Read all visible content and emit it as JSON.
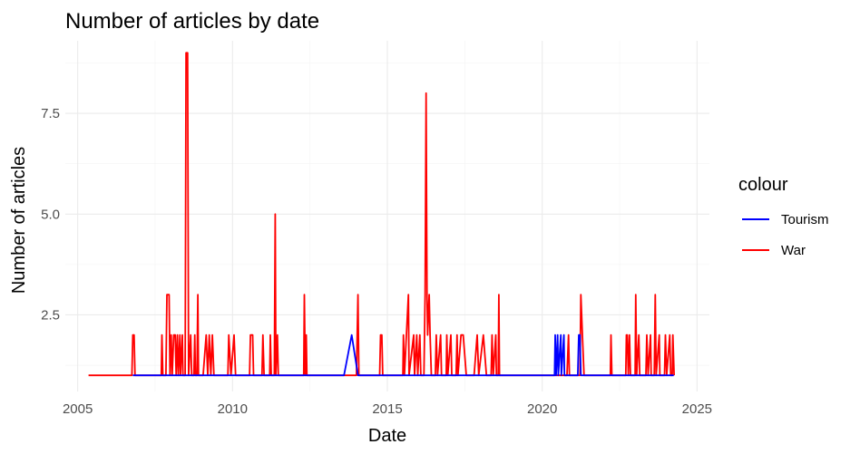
{
  "chart_data": {
    "type": "line",
    "title": "Number of articles by date",
    "xlabel": "Date",
    "ylabel": "Number of articles",
    "x_type": "year",
    "xlim": [
      2004.6,
      2025.4
    ],
    "ylim": [
      0.6,
      9.3
    ],
    "x_ticks": [
      2005,
      2010,
      2015,
      2020,
      2025
    ],
    "x_tick_labels": [
      "2005",
      "2010",
      "2015",
      "2020",
      "2025"
    ],
    "y_ticks": [
      2.5,
      5.0,
      7.5
    ],
    "y_tick_labels": [
      "2.5",
      "5.0",
      "7.5"
    ],
    "grid": true,
    "legend": {
      "title": "colour",
      "position": "right"
    },
    "colors": {
      "Tourism": "#0000ff",
      "War": "#ff0000"
    },
    "series": [
      {
        "name": "War",
        "color": "#ff0000",
        "points": [
          [
            2005.35,
            1
          ],
          [
            2006.75,
            1
          ],
          [
            2006.78,
            2
          ],
          [
            2006.82,
            2
          ],
          [
            2006.85,
            1
          ],
          [
            2007.7,
            1
          ],
          [
            2007.72,
            2
          ],
          [
            2007.75,
            1
          ],
          [
            2007.85,
            1
          ],
          [
            2007.88,
            3
          ],
          [
            2007.95,
            3
          ],
          [
            2007.98,
            1
          ],
          [
            2008.02,
            2
          ],
          [
            2008.05,
            1
          ],
          [
            2008.1,
            2
          ],
          [
            2008.15,
            2
          ],
          [
            2008.18,
            1
          ],
          [
            2008.22,
            2
          ],
          [
            2008.25,
            1
          ],
          [
            2008.3,
            2
          ],
          [
            2008.32,
            1
          ],
          [
            2008.38,
            2
          ],
          [
            2008.4,
            1
          ],
          [
            2008.47,
            1
          ],
          [
            2008.5,
            9
          ],
          [
            2008.55,
            9
          ],
          [
            2008.58,
            1
          ],
          [
            2008.65,
            2
          ],
          [
            2008.68,
            1
          ],
          [
            2008.75,
            1
          ],
          [
            2008.78,
            2
          ],
          [
            2008.8,
            1
          ],
          [
            2008.85,
            1
          ],
          [
            2008.88,
            3
          ],
          [
            2008.9,
            1
          ],
          [
            2009.05,
            1
          ],
          [
            2009.15,
            2
          ],
          [
            2009.2,
            1
          ],
          [
            2009.25,
            2
          ],
          [
            2009.3,
            1
          ],
          [
            2009.35,
            2
          ],
          [
            2009.4,
            1
          ],
          [
            2009.85,
            1
          ],
          [
            2009.88,
            2
          ],
          [
            2009.95,
            1
          ],
          [
            2010.05,
            2
          ],
          [
            2010.1,
            1
          ],
          [
            2010.55,
            1
          ],
          [
            2010.58,
            2
          ],
          [
            2010.65,
            2
          ],
          [
            2010.68,
            1
          ],
          [
            2010.95,
            1
          ],
          [
            2010.98,
            2
          ],
          [
            2011.02,
            1
          ],
          [
            2011.2,
            1
          ],
          [
            2011.22,
            2
          ],
          [
            2011.25,
            1
          ],
          [
            2011.35,
            1
          ],
          [
            2011.38,
            5
          ],
          [
            2011.4,
            1
          ],
          [
            2011.45,
            2
          ],
          [
            2011.48,
            1
          ],
          [
            2012.3,
            1
          ],
          [
            2012.32,
            3
          ],
          [
            2012.35,
            1
          ],
          [
            2012.38,
            2
          ],
          [
            2012.4,
            1
          ],
          [
            2014.0,
            1
          ],
          [
            2014.05,
            3
          ],
          [
            2014.08,
            1
          ],
          [
            2014.75,
            1
          ],
          [
            2014.78,
            2
          ],
          [
            2014.82,
            2
          ],
          [
            2014.85,
            1
          ],
          [
            2015.5,
            1
          ],
          [
            2015.52,
            2
          ],
          [
            2015.55,
            1
          ],
          [
            2015.68,
            3
          ],
          [
            2015.7,
            1
          ],
          [
            2015.85,
            2
          ],
          [
            2015.88,
            1
          ],
          [
            2015.95,
            2
          ],
          [
            2015.98,
            1
          ],
          [
            2016.05,
            2
          ],
          [
            2016.08,
            1
          ],
          [
            2016.18,
            1
          ],
          [
            2016.22,
            3
          ],
          [
            2016.25,
            8
          ],
          [
            2016.28,
            3
          ],
          [
            2016.3,
            2
          ],
          [
            2016.35,
            3
          ],
          [
            2016.38,
            2
          ],
          [
            2016.42,
            1
          ],
          [
            2016.55,
            1
          ],
          [
            2016.58,
            2
          ],
          [
            2016.62,
            1
          ],
          [
            2016.72,
            2
          ],
          [
            2016.75,
            1
          ],
          [
            2016.9,
            1
          ],
          [
            2016.92,
            2
          ],
          [
            2016.95,
            1
          ],
          [
            2017.05,
            2
          ],
          [
            2017.08,
            1
          ],
          [
            2017.22,
            1
          ],
          [
            2017.25,
            2
          ],
          [
            2017.28,
            1
          ],
          [
            2017.38,
            2
          ],
          [
            2017.45,
            2
          ],
          [
            2017.55,
            1
          ],
          [
            2017.8,
            1
          ],
          [
            2017.9,
            2
          ],
          [
            2017.95,
            1
          ],
          [
            2018.1,
            2
          ],
          [
            2018.2,
            1
          ],
          [
            2018.35,
            1
          ],
          [
            2018.38,
            2
          ],
          [
            2018.42,
            1
          ],
          [
            2018.5,
            2
          ],
          [
            2018.52,
            1
          ],
          [
            2018.58,
            1
          ],
          [
            2018.6,
            3
          ],
          [
            2018.62,
            1
          ],
          [
            2020.8,
            1
          ],
          [
            2020.85,
            2
          ],
          [
            2020.88,
            1
          ],
          [
            2021.22,
            1
          ],
          [
            2021.25,
            3
          ],
          [
            2021.3,
            2
          ],
          [
            2021.35,
            1
          ],
          [
            2022.2,
            1
          ],
          [
            2022.22,
            2
          ],
          [
            2022.25,
            1
          ],
          [
            2022.7,
            1
          ],
          [
            2022.72,
            2
          ],
          [
            2022.75,
            2
          ],
          [
            2022.78,
            1
          ],
          [
            2022.82,
            2
          ],
          [
            2022.85,
            1
          ],
          [
            2023.0,
            1
          ],
          [
            2023.02,
            3
          ],
          [
            2023.05,
            1
          ],
          [
            2023.12,
            2
          ],
          [
            2023.15,
            1
          ],
          [
            2023.35,
            1
          ],
          [
            2023.38,
            2
          ],
          [
            2023.42,
            1
          ],
          [
            2023.5,
            2
          ],
          [
            2023.52,
            1
          ],
          [
            2023.62,
            1
          ],
          [
            2023.65,
            3
          ],
          [
            2023.68,
            1
          ],
          [
            2023.78,
            2
          ],
          [
            2023.8,
            1
          ],
          [
            2023.95,
            1
          ],
          [
            2023.98,
            2
          ],
          [
            2024.02,
            1
          ],
          [
            2024.12,
            2
          ],
          [
            2024.15,
            1
          ],
          [
            2024.2,
            1
          ],
          [
            2024.22,
            2
          ],
          [
            2024.26,
            1
          ]
        ]
      },
      {
        "name": "Tourism",
        "color": "#0000ff",
        "points": [
          [
            2006.78,
            1
          ],
          [
            2013.6,
            1
          ],
          [
            2013.85,
            2
          ],
          [
            2014.05,
            1
          ],
          [
            2020.4,
            1
          ],
          [
            2020.42,
            2
          ],
          [
            2020.45,
            1
          ],
          [
            2020.5,
            2
          ],
          [
            2020.52,
            1
          ],
          [
            2020.6,
            2
          ],
          [
            2020.62,
            1
          ],
          [
            2020.7,
            2
          ],
          [
            2020.72,
            1
          ],
          [
            2020.8,
            1
          ],
          [
            2021.15,
            1
          ],
          [
            2021.18,
            2
          ],
          [
            2021.22,
            2
          ],
          [
            2021.25,
            1
          ],
          [
            2024.25,
            1
          ]
        ]
      }
    ]
  }
}
